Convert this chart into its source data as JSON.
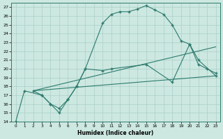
{
  "xlabel": "Humidex (Indice chaleur)",
  "background_color": "#cce8e0",
  "grid_color": "#aacfc8",
  "line_color": "#2d7a6e",
  "xlim": [
    -0.5,
    23.5
  ],
  "ylim": [
    14,
    27.5
  ],
  "xticks": [
    0,
    1,
    2,
    3,
    4,
    5,
    6,
    7,
    8,
    9,
    10,
    11,
    12,
    13,
    14,
    15,
    16,
    17,
    18,
    19,
    20,
    21,
    22,
    23
  ],
  "yticks": [
    14,
    15,
    16,
    17,
    18,
    19,
    20,
    21,
    22,
    23,
    24,
    25,
    26,
    27
  ],
  "line1_x": [
    0,
    1,
    3,
    4,
    5,
    6,
    7,
    8,
    10,
    11,
    12,
    13,
    14,
    15,
    16,
    17,
    18,
    19,
    20,
    21,
    22,
    23
  ],
  "line1_y": [
    14,
    17.5,
    17,
    16,
    15,
    16.5,
    18,
    20,
    25.2,
    26.2,
    26.5,
    26.5,
    26.8,
    27.2,
    26.7,
    26.2,
    25,
    23.2,
    22.8,
    20.5,
    20,
    19.5
  ],
  "line2_x": [
    2,
    23
  ],
  "line2_y": [
    17.5,
    19.2
  ],
  "line3_x": [
    2,
    23
  ],
  "line3_y": [
    17.5,
    22.5
  ],
  "line4_x": [
    2,
    3,
    4,
    5,
    6,
    7,
    8,
    10,
    11,
    15,
    18,
    20,
    21,
    23
  ],
  "line4_y": [
    17.5,
    17,
    16,
    15.5,
    16.5,
    18,
    20,
    19.8,
    20,
    20.5,
    18.5,
    22.8,
    21,
    19.2
  ]
}
